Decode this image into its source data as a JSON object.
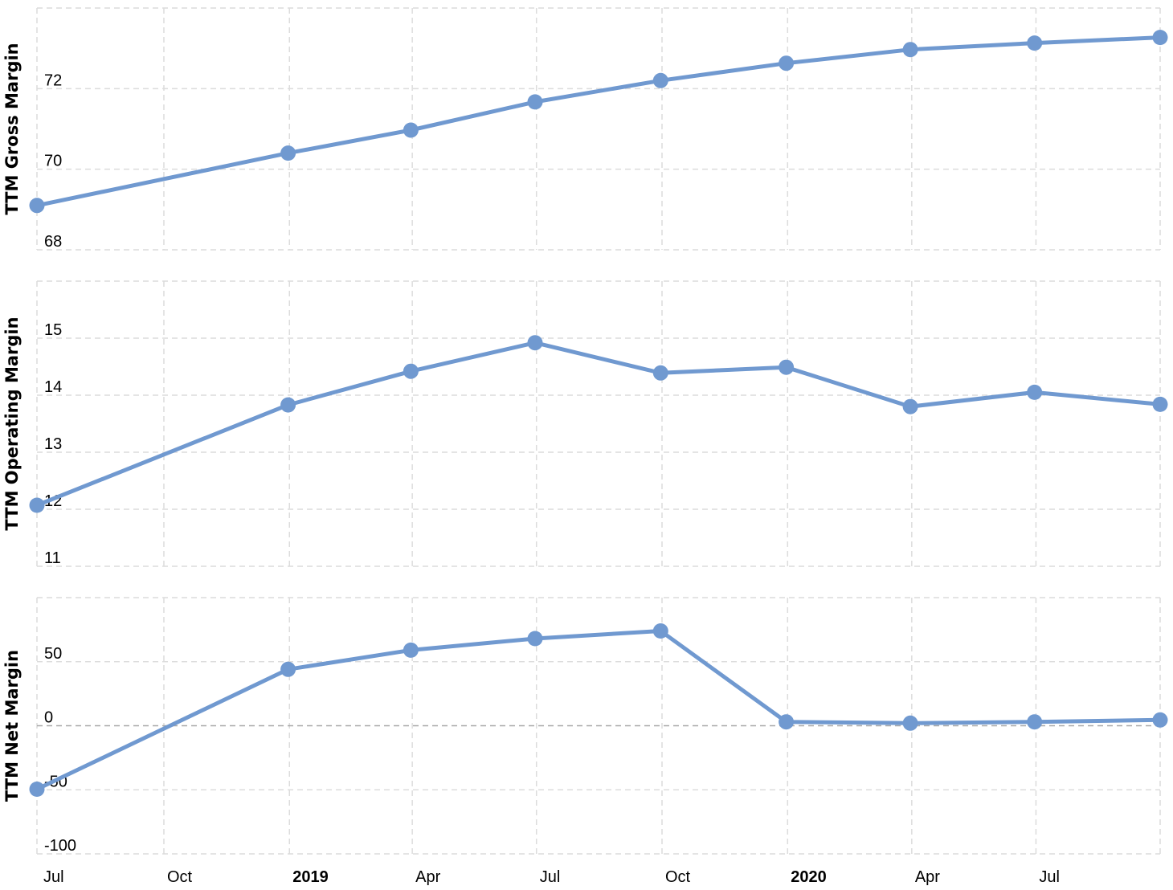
{
  "chart_data": [
    {
      "type": "line",
      "ylabel": "TTM Gross Margin",
      "ylim": [
        68,
        74
      ],
      "yticks": [
        68,
        70,
        72
      ],
      "grid": true,
      "x": [
        "2018-06-30",
        "2018-12-31",
        "2019-03-31",
        "2019-06-30",
        "2019-09-30",
        "2019-12-31",
        "2020-03-31",
        "2020-06-30",
        "2020-09-30"
      ],
      "values": [
        69.1,
        70.4,
        70.97,
        71.67,
        72.2,
        72.63,
        72.97,
        73.13,
        73.27
      ]
    },
    {
      "type": "line",
      "ylabel": "TTM Operating Margin",
      "ylim": [
        11,
        16
      ],
      "yticks": [
        11,
        12,
        13,
        14,
        15
      ],
      "grid": true,
      "x": [
        "2018-06-30",
        "2018-12-31",
        "2019-03-31",
        "2019-06-30",
        "2019-09-30",
        "2019-12-31",
        "2020-03-31",
        "2020-06-30",
        "2020-09-30"
      ],
      "values": [
        12.07,
        13.83,
        14.42,
        14.92,
        14.39,
        14.49,
        13.8,
        14.05,
        13.84
      ]
    },
    {
      "type": "line",
      "ylabel": "TTM Net Margin",
      "ylim": [
        -100,
        100
      ],
      "yticks": [
        -100,
        -50,
        0,
        50
      ],
      "grid": true,
      "x": [
        "2018-06-30",
        "2018-12-31",
        "2019-03-31",
        "2019-06-30",
        "2019-09-30",
        "2019-12-31",
        "2020-03-31",
        "2020-06-30",
        "2020-09-30"
      ],
      "values": [
        -49.5,
        44,
        59,
        68,
        74,
        3,
        2,
        3,
        4.5
      ]
    }
  ],
  "x_axis": {
    "ticks": [
      {
        "label": "Jul",
        "date": "2018-07-01",
        "bold": false
      },
      {
        "label": "Oct",
        "date": "2018-10-01",
        "bold": false
      },
      {
        "label": "2019",
        "date": "2019-01-01",
        "bold": true
      },
      {
        "label": "Apr",
        "date": "2019-04-01",
        "bold": false
      },
      {
        "label": "Jul",
        "date": "2019-07-01",
        "bold": false
      },
      {
        "label": "Oct",
        "date": "2019-10-01",
        "bold": false
      },
      {
        "label": "2020",
        "date": "2020-01-01",
        "bold": true
      },
      {
        "label": "Apr",
        "date": "2020-04-01",
        "bold": false
      },
      {
        "label": "Jul",
        "date": "2020-07-01",
        "bold": false
      }
    ]
  },
  "colors": {
    "series": "#7099d0",
    "grid": "#dcdcdc",
    "zero_line": "#a8a8a8"
  }
}
